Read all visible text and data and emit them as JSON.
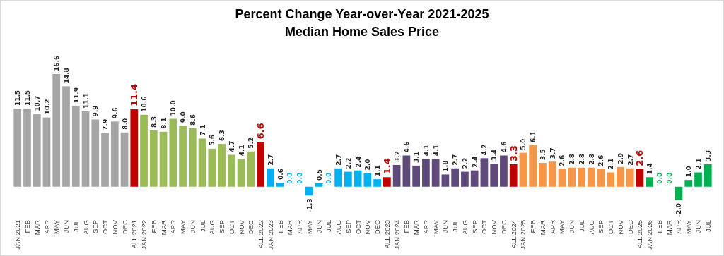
{
  "chart_data": {
    "type": "bar",
    "title": "Percent Change Year-over-Year 2021-2025",
    "subtitle": "Median Home Sales Price",
    "categories": [
      "JAN 2021",
      "FEB",
      "MAR",
      "APR",
      "MAY",
      "JUN",
      "JUL",
      "AUG",
      "SEP",
      "OCT",
      "NOV",
      "DEC",
      "ALL 2021",
      "JAN 2022",
      "FEB",
      "MAR",
      "APR",
      "MAY",
      "JUN",
      "JUL",
      "AUG",
      "SEP",
      "OCT",
      "NOV",
      "DEC",
      "ALL 2022",
      "JAN 2023",
      "FEB",
      "MAR",
      "APR",
      "MAY",
      "JUN",
      "JUL",
      "AUG",
      "SEP",
      "OCT",
      "NOV",
      "DEC",
      "ALL 2023",
      "JAN 2024",
      "FEB",
      "MAR",
      "APR",
      "MAY",
      "JUN",
      "JUL",
      "AUG",
      "SEP",
      "OCT",
      "NOV",
      "DEC",
      "ALL 2024",
      "JAN 2025",
      "FEB",
      "MAR",
      "APR",
      "MAY",
      "JUN",
      "JUL",
      "AUG",
      "SEP",
      "OCT",
      "NOV",
      "DEC",
      "ALL 2025",
      "JAN 2026",
      "FEB",
      "MAR",
      "APR",
      "MAY",
      "JUN",
      "JUL"
    ],
    "values": [
      11.5,
      11.5,
      10.7,
      10.2,
      16.6,
      14.8,
      11.9,
      11.1,
      9.9,
      7.9,
      9.6,
      8.0,
      11.4,
      10.6,
      8.3,
      8.1,
      10.0,
      9.0,
      8.6,
      7.1,
      5.6,
      6.3,
      4.7,
      4.1,
      5.2,
      6.6,
      2.7,
      0.6,
      0.0,
      0.0,
      -1.3,
      0.5,
      0.0,
      2.7,
      2.2,
      2.4,
      2.0,
      1.1,
      1.4,
      3.2,
      4.6,
      3.1,
      4.1,
      4.1,
      1.8,
      2.7,
      2.2,
      2.4,
      4.2,
      3.4,
      4.6,
      3.3,
      5.0,
      6.1,
      3.5,
      3.7,
      2.6,
      2.8,
      2.8,
      2.8,
      2.6,
      2.1,
      2.9,
      2.7,
      2.6,
      1.4,
      0.0,
      0.0,
      -2.0,
      1.0,
      2.1,
      3.3
    ],
    "value_labels": [
      "11.5",
      "11.5",
      "10.7",
      "10.2",
      "16.6",
      "14.8",
      "11.9",
      "11.1",
      "9.9",
      "7.9",
      "9.6",
      "8.0",
      "11.4",
      "10.6",
      "8.3",
      "8.1",
      "10.0",
      "9.0",
      "8.6",
      "7.1",
      "5.6",
      "6.3",
      "4.7",
      "4.1",
      "5.2",
      "6.6",
      "2.7",
      "0.6",
      "0.0",
      "0.0",
      "-1.3",
      "0.5",
      "0.0",
      "2.7",
      "2.2",
      "2.4",
      "2.0",
      "1.1",
      "1.4",
      "3.2",
      "4.6",
      "3.1",
      "4.1",
      "4.1",
      "1.8",
      "2.7",
      "2.2",
      "2.4",
      "4.2",
      "3.4",
      "4.6",
      "3.3",
      "5.0",
      "6.1",
      "3.5",
      "3.7",
      "2.6",
      "2.8",
      "2.8",
      "2.8",
      "2.6",
      "2.1",
      "2.9",
      "2.7",
      "2.6",
      "1.4",
      "0.0",
      "0.0",
      "-2.0",
      "1.0",
      "2.1",
      "3.3"
    ],
    "colors": [
      "#a5a5a5",
      "#a5a5a5",
      "#a5a5a5",
      "#a5a5a5",
      "#a5a5a5",
      "#a5a5a5",
      "#a5a5a5",
      "#a5a5a5",
      "#a5a5a5",
      "#a5a5a5",
      "#a5a5a5",
      "#a5a5a5",
      "#c00000",
      "#9bbb59",
      "#9bbb59",
      "#9bbb59",
      "#9bbb59",
      "#9bbb59",
      "#9bbb59",
      "#9bbb59",
      "#9bbb59",
      "#9bbb59",
      "#9bbb59",
      "#9bbb59",
      "#9bbb59",
      "#c00000",
      "#00b0f0",
      "#00b0f0",
      "#00b0f0",
      "#00b0f0",
      "#00b0f0",
      "#00b0f0",
      "#00b0f0",
      "#00b0f0",
      "#00b0f0",
      "#00b0f0",
      "#00b0f0",
      "#00b0f0",
      "#c00000",
      "#604a7b",
      "#604a7b",
      "#604a7b",
      "#604a7b",
      "#604a7b",
      "#604a7b",
      "#604a7b",
      "#604a7b",
      "#604a7b",
      "#604a7b",
      "#604a7b",
      "#604a7b",
      "#c00000",
      "#f79646",
      "#f79646",
      "#f79646",
      "#f79646",
      "#f79646",
      "#f79646",
      "#f79646",
      "#f79646",
      "#f79646",
      "#f79646",
      "#f79646",
      "#f79646",
      "#c00000",
      "#00b050",
      "#00b050",
      "#00b050",
      "#00b050",
      "#00b050",
      "#00b050",
      "#00b050"
    ]
  }
}
